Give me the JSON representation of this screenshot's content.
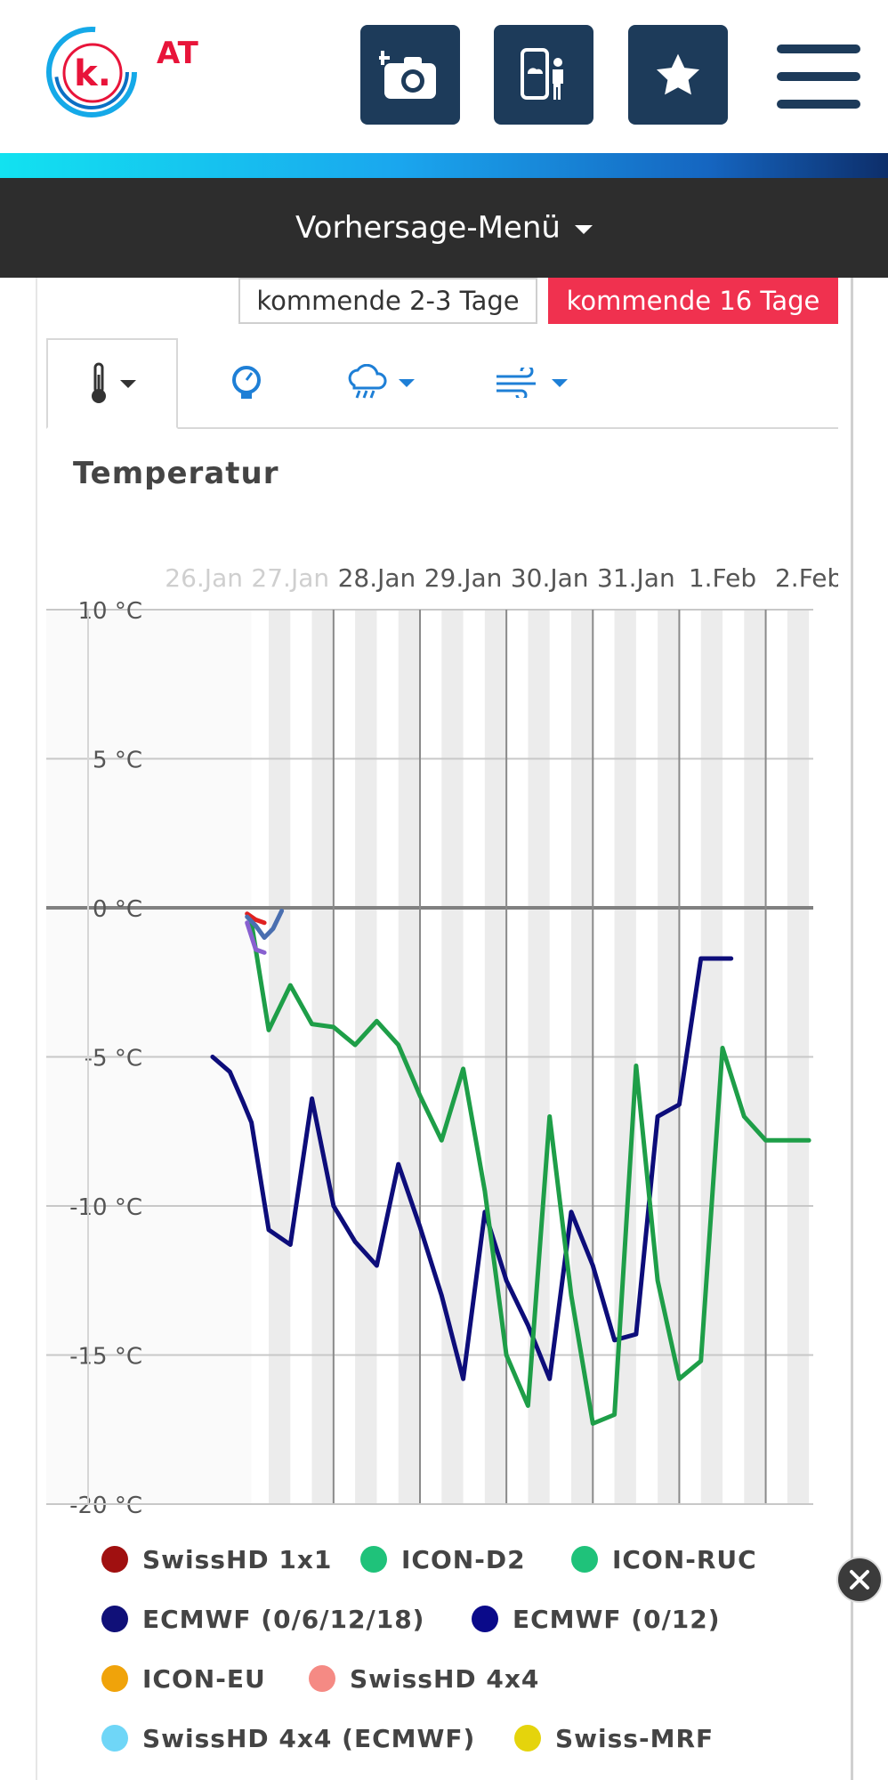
{
  "header": {
    "logo_letter": "k.",
    "country": "AT",
    "icons": [
      "camera-add-icon",
      "phone-person-icon",
      "star-icon",
      "hamburger-menu-icon"
    ]
  },
  "menu": {
    "label": "Vorhersage-Menü"
  },
  "range_buttons": {
    "short": "kommende 2-3 Tage",
    "long": "kommende 16 Tage"
  },
  "tabs": [
    "thermometer-icon",
    "pressure-gauge-icon",
    "rain-cloud-icon",
    "wind-icon"
  ],
  "section": {
    "title": "Temperatur"
  },
  "chart_data": {
    "type": "line",
    "title": "",
    "ylabel": "",
    "xlabel": "",
    "ylim": [
      -20,
      10
    ],
    "xlim": [
      26.2,
      33.55
    ],
    "y_ticks": [
      10,
      5,
      0,
      -5,
      -10,
      -15,
      -20
    ],
    "y_tick_labels": [
      "10 °C",
      "5 °C",
      "0 °C",
      "-5 °C",
      "-10 °C",
      "-15 °C",
      "-20 °C"
    ],
    "x_ticks": [
      26,
      27,
      28,
      29,
      30,
      31,
      32,
      33
    ],
    "x_tick_labels": [
      "26.Jan",
      "27.Jan",
      "28.Jan",
      "29.Jan",
      "30.Jan",
      "31.Jan",
      "1.Feb",
      "2.Feb"
    ],
    "faded_tick_labels": [
      "26.Jan",
      "27.Jan"
    ],
    "forecast_start": 27.05,
    "series": [
      {
        "name": "ECMWF (0/6/12/18)",
        "color": "#0d0d7a",
        "x": [
          26.6,
          26.8,
          26.95,
          27.05,
          27.25,
          27.5,
          27.75,
          28.0,
          28.25,
          28.5,
          28.75,
          29.0,
          29.25,
          29.5,
          29.75,
          30.0,
          30.25,
          30.5,
          30.75,
          31.0,
          31.25,
          31.5,
          31.75,
          32.0,
          32.25,
          32.5,
          32.6
        ],
        "y": [
          -5.0,
          -5.5,
          -6.5,
          -7.2,
          -10.8,
          -11.3,
          -6.4,
          -10.0,
          -11.2,
          -12.0,
          -8.6,
          -10.7,
          -13.0,
          -15.8,
          -10.2,
          -12.5,
          -14.0,
          -15.8,
          -10.2,
          -12.0,
          -14.5,
          -14.3,
          -7.0,
          -6.6,
          -1.7,
          -1.7,
          -1.7
        ]
      },
      {
        "name": "ICON-D2",
        "color": "#1e9e48",
        "x": [
          27.05,
          27.25,
          27.5,
          27.75,
          28.0,
          28.25,
          28.5,
          28.75,
          29.0,
          29.25,
          29.5,
          29.75,
          30.0,
          30.25,
          30.5,
          30.75,
          31.0,
          31.25,
          31.5,
          31.75,
          32.0,
          32.25,
          32.5,
          32.75,
          33.0,
          33.25,
          33.5
        ],
        "y": [
          -0.5,
          -4.1,
          -2.6,
          -3.9,
          -4.0,
          -4.6,
          -3.8,
          -4.6,
          -6.3,
          -7.8,
          -5.4,
          -9.5,
          -15.0,
          -16.7,
          -7.0,
          -13.0,
          -17.3,
          -17.0,
          -5.3,
          -12.5,
          -15.8,
          -15.2,
          -4.7,
          -7.0,
          -7.8,
          -7.8,
          -7.8
        ]
      },
      {
        "name": "SwissHD 1x1",
        "color": "#e02020",
        "x": [
          27.0,
          27.1,
          27.2
        ],
        "y": [
          -0.2,
          -0.4,
          -0.5
        ]
      },
      {
        "name": "ICON-RUC",
        "color": "#4a6fb0",
        "x": [
          27.0,
          27.1,
          27.2,
          27.3,
          27.4
        ],
        "y": [
          -0.3,
          -0.6,
          -1.0,
          -0.7,
          -0.1
        ]
      },
      {
        "name": "Swiss-MRF",
        "color": "#8860d0",
        "x": [
          27.0,
          27.1,
          27.2
        ],
        "y": [
          -0.5,
          -1.4,
          -1.5
        ]
      }
    ],
    "legend": [
      {
        "name": "SwissHD 1x1",
        "color": "#a01010"
      },
      {
        "name": "ICON-D2",
        "color": "#1fc27a"
      },
      {
        "name": "ICON-RUC",
        "color": "#1fc27a"
      },
      {
        "name": "ECMWF (0/6/12/18)",
        "color": "#101078"
      },
      {
        "name": "ECMWF (0/12)",
        "color": "#0a0a8a"
      },
      {
        "name": "ICON-EU",
        "color": "#f0a30a"
      },
      {
        "name": "SwissHD 4x4",
        "color": "#f58a84"
      },
      {
        "name": "SwissHD 4x4 (ECMWF)",
        "color": "#6fd6f7"
      },
      {
        "name": "Swiss-MRF",
        "color": "#e5d40c"
      }
    ]
  }
}
